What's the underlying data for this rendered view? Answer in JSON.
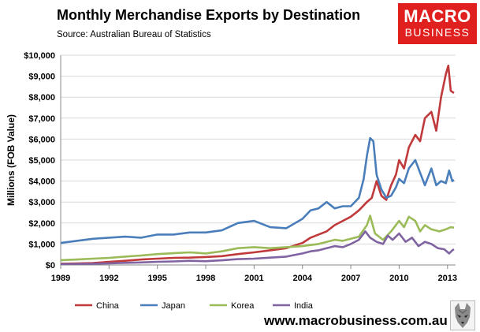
{
  "header": {
    "title": "Monthly Merchandise Exports by Destination",
    "source": "Source: Australian Bureau of Statistics"
  },
  "brand": {
    "line1": "MACRO",
    "line2": "BUSINESS",
    "url": "www.macrobusiness.com.au",
    "color": "#e0201f",
    "mascot_icon": "wolf-icon"
  },
  "chart_data": {
    "type": "line",
    "title": "Monthly Merchandise Exports by Destination",
    "ylabel": "Millions (FOB Value)",
    "xlabel": "",
    "xlim": [
      1989,
      2013.5
    ],
    "ylim": [
      0,
      10000
    ],
    "y_ticks": [
      0,
      1000,
      2000,
      3000,
      4000,
      5000,
      6000,
      7000,
      8000,
      9000,
      10000
    ],
    "y_tick_labels": [
      "$0",
      "$1,000",
      "$2,000",
      "$3,000",
      "$4,000",
      "$5,000",
      "$6,000",
      "$7,000",
      "$8,000",
      "$9,000",
      "$10,000"
    ],
    "x_ticks": [
      1989,
      1992,
      1995,
      1998,
      2001,
      2004,
      2007,
      2010,
      2013
    ],
    "x_tick_labels": [
      "1989",
      "1992",
      "1995",
      "1998",
      "2001",
      "2004",
      "2007",
      "2010",
      "2013"
    ],
    "grid": "horizontal",
    "legend_position": "bottom-left",
    "series": [
      {
        "name": "China",
        "color": "#c0393b",
        "points": [
          [
            1989,
            60
          ],
          [
            1990,
            70
          ],
          [
            1991,
            90
          ],
          [
            1992,
            150
          ],
          [
            1993,
            200
          ],
          [
            1994,
            260
          ],
          [
            1995,
            300
          ],
          [
            1996,
            340
          ],
          [
            1997,
            350
          ],
          [
            1998,
            380
          ],
          [
            1999,
            420
          ],
          [
            2000,
            520
          ],
          [
            2001,
            600
          ],
          [
            2002,
            700
          ],
          [
            2003,
            800
          ],
          [
            2004,
            1050
          ],
          [
            2004.5,
            1300
          ],
          [
            2005,
            1450
          ],
          [
            2005.5,
            1600
          ],
          [
            2006,
            1900
          ],
          [
            2006.5,
            2100
          ],
          [
            2007,
            2300
          ],
          [
            2007.5,
            2600
          ],
          [
            2008,
            3000
          ],
          [
            2008.3,
            3200
          ],
          [
            2008.6,
            4000
          ],
          [
            2008.9,
            3300
          ],
          [
            2009.2,
            3100
          ],
          [
            2009.5,
            3800
          ],
          [
            2009.8,
            4300
          ],
          [
            2010,
            5000
          ],
          [
            2010.3,
            4600
          ],
          [
            2010.6,
            5600
          ],
          [
            2011,
            6200
          ],
          [
            2011.3,
            5900
          ],
          [
            2011.6,
            7000
          ],
          [
            2012,
            7300
          ],
          [
            2012.3,
            6400
          ],
          [
            2012.6,
            8000
          ],
          [
            2012.9,
            9100
          ],
          [
            2013.05,
            9500
          ],
          [
            2013.2,
            8300
          ],
          [
            2013.4,
            8200
          ]
        ]
      },
      {
        "name": "Japan",
        "color": "#4a7ebb",
        "points": [
          [
            1989,
            1050
          ],
          [
            1990,
            1150
          ],
          [
            1991,
            1250
          ],
          [
            1992,
            1300
          ],
          [
            1993,
            1350
          ],
          [
            1994,
            1300
          ],
          [
            1995,
            1450
          ],
          [
            1996,
            1450
          ],
          [
            1997,
            1550
          ],
          [
            1998,
            1550
          ],
          [
            1999,
            1650
          ],
          [
            2000,
            2000
          ],
          [
            2001,
            2100
          ],
          [
            2002,
            1800
          ],
          [
            2003,
            1750
          ],
          [
            2004,
            2200
          ],
          [
            2004.5,
            2600
          ],
          [
            2005,
            2700
          ],
          [
            2005.5,
            3000
          ],
          [
            2006,
            2700
          ],
          [
            2006.5,
            2800
          ],
          [
            2007,
            2800
          ],
          [
            2007.5,
            3200
          ],
          [
            2007.8,
            4100
          ],
          [
            2008,
            5200
          ],
          [
            2008.2,
            6050
          ],
          [
            2008.4,
            5900
          ],
          [
            2008.6,
            4300
          ],
          [
            2008.9,
            3600
          ],
          [
            2009.2,
            3200
          ],
          [
            2009.5,
            3300
          ],
          [
            2009.8,
            3700
          ],
          [
            2010,
            4100
          ],
          [
            2010.3,
            3900
          ],
          [
            2010.6,
            4600
          ],
          [
            2011,
            5000
          ],
          [
            2011.3,
            4400
          ],
          [
            2011.6,
            3800
          ],
          [
            2012,
            4600
          ],
          [
            2012.3,
            3800
          ],
          [
            2012.6,
            4000
          ],
          [
            2012.9,
            3900
          ],
          [
            2013.1,
            4500
          ],
          [
            2013.3,
            4000
          ],
          [
            2013.4,
            4050
          ]
        ]
      },
      {
        "name": "Korea",
        "color": "#9bbb59",
        "points": [
          [
            1989,
            230
          ],
          [
            1990,
            260
          ],
          [
            1991,
            300
          ],
          [
            1992,
            340
          ],
          [
            1993,
            400
          ],
          [
            1994,
            450
          ],
          [
            1995,
            520
          ],
          [
            1996,
            560
          ],
          [
            1997,
            600
          ],
          [
            1998,
            550
          ],
          [
            1999,
            650
          ],
          [
            2000,
            800
          ],
          [
            2001,
            850
          ],
          [
            2002,
            800
          ],
          [
            2003,
            850
          ],
          [
            2004,
            900
          ],
          [
            2004.5,
            950
          ],
          [
            2005,
            1000
          ],
          [
            2005.5,
            1100
          ],
          [
            2006,
            1200
          ],
          [
            2006.5,
            1150
          ],
          [
            2007,
            1250
          ],
          [
            2007.5,
            1350
          ],
          [
            2008,
            1900
          ],
          [
            2008.2,
            2350
          ],
          [
            2008.5,
            1500
          ],
          [
            2009,
            1200
          ],
          [
            2009.5,
            1600
          ],
          [
            2010,
            2100
          ],
          [
            2010.3,
            1800
          ],
          [
            2010.6,
            2300
          ],
          [
            2011,
            2100
          ],
          [
            2011.3,
            1600
          ],
          [
            2011.6,
            1900
          ],
          [
            2012,
            1700
          ],
          [
            2012.5,
            1600
          ],
          [
            2012.9,
            1700
          ],
          [
            2013.2,
            1800
          ],
          [
            2013.4,
            1780
          ]
        ]
      },
      {
        "name": "India",
        "color": "#8064a2",
        "points": [
          [
            1989,
            40
          ],
          [
            1990,
            50
          ],
          [
            1991,
            60
          ],
          [
            1992,
            80
          ],
          [
            1993,
            100
          ],
          [
            1994,
            120
          ],
          [
            1995,
            150
          ],
          [
            1996,
            170
          ],
          [
            1997,
            200
          ],
          [
            1998,
            180
          ],
          [
            1999,
            220
          ],
          [
            2000,
            280
          ],
          [
            2001,
            300
          ],
          [
            2002,
            350
          ],
          [
            2003,
            400
          ],
          [
            2004,
            550
          ],
          [
            2004.5,
            650
          ],
          [
            2005,
            700
          ],
          [
            2005.5,
            800
          ],
          [
            2006,
            900
          ],
          [
            2006.5,
            850
          ],
          [
            2007,
            1000
          ],
          [
            2007.5,
            1200
          ],
          [
            2007.9,
            1600
          ],
          [
            2008.2,
            1300
          ],
          [
            2008.6,
            1100
          ],
          [
            2009,
            1000
          ],
          [
            2009.3,
            1400
          ],
          [
            2009.6,
            1200
          ],
          [
            2010,
            1500
          ],
          [
            2010.4,
            1100
          ],
          [
            2010.8,
            1300
          ],
          [
            2011.2,
            900
          ],
          [
            2011.6,
            1100
          ],
          [
            2012,
            1000
          ],
          [
            2012.4,
            800
          ],
          [
            2012.8,
            750
          ],
          [
            2013.1,
            550
          ],
          [
            2013.3,
            700
          ],
          [
            2013.4,
            750
          ]
        ]
      }
    ]
  }
}
